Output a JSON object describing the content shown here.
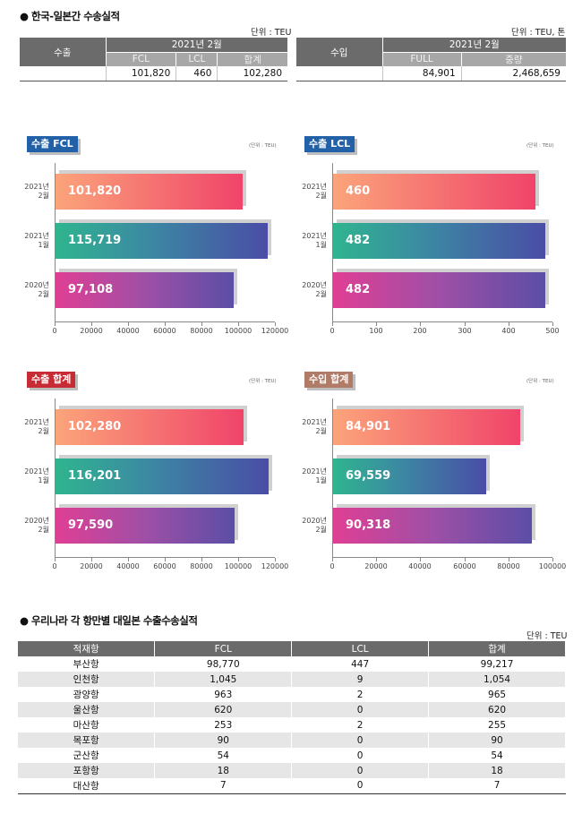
{
  "summary": {
    "title": "● 한국-일본간 수송실적",
    "export_unit": "단위 : TEU",
    "import_unit": "단위 : TEU, 톤",
    "export": {
      "label": "수출",
      "period": "2021년 2월",
      "cols": [
        "FCL",
        "LCL",
        "합계"
      ],
      "values": [
        "101,820",
        "460",
        "102,280"
      ]
    },
    "import": {
      "label": "수입",
      "period": "2021년 2월",
      "cols": [
        "FULL",
        "중량"
      ],
      "values": [
        "84,901",
        "2,468,659"
      ]
    }
  },
  "charts": [
    {
      "tag": "수출 FCL",
      "tag_color": "#2261a8",
      "unit": "(단위 : TEU)",
      "chart_data": {
        "type": "bar",
        "categories": [
          "2021년 2월",
          "2021년 1월",
          "2020년 2월"
        ],
        "values": [
          101820,
          115719,
          97108
        ],
        "labels": [
          "101,820",
          "115,719",
          "97,108"
        ],
        "xlim": [
          0,
          120000
        ],
        "ticks": [
          "0",
          "20000",
          "40000",
          "60000",
          "80000",
          "100000",
          "120000"
        ]
      }
    },
    {
      "tag": "수출 LCL",
      "tag_color": "#2261a8",
      "unit": "(단위 : TEU)",
      "chart_data": {
        "type": "bar",
        "categories": [
          "2021년 2월",
          "2021년 1월",
          "2020년 2월"
        ],
        "values": [
          460,
          482,
          482
        ],
        "labels": [
          "460",
          "482",
          "482"
        ],
        "xlim": [
          0,
          500
        ],
        "ticks": [
          "0",
          "100",
          "200",
          "300",
          "400",
          "500"
        ]
      }
    },
    {
      "tag": "수출 합계",
      "tag_color": "#c72b34",
      "unit": "(단위 : TEU)",
      "chart_data": {
        "type": "bar",
        "categories": [
          "2021년 2월",
          "2021년 1월",
          "2020년 2월"
        ],
        "values": [
          102280,
          116201,
          97590
        ],
        "labels": [
          "102,280",
          "116,201",
          "97,590"
        ],
        "xlim": [
          0,
          120000
        ],
        "ticks": [
          "0",
          "20000",
          "40000",
          "60000",
          "80000",
          "100000",
          "120000"
        ]
      }
    },
    {
      "tag": "수입 합계",
      "tag_color": "#b07b67",
      "unit": "(단위 : TEU)",
      "chart_data": {
        "type": "bar",
        "categories": [
          "2021년 2월",
          "2021년 1월",
          "2020년 2월"
        ],
        "values": [
          84901,
          69559,
          90318
        ],
        "labels": [
          "84,901",
          "69,559",
          "90,318"
        ],
        "xlim": [
          0,
          100000
        ],
        "ticks": [
          "0",
          "20000",
          "40000",
          "60000",
          "80000",
          "100000"
        ]
      }
    }
  ],
  "ports": {
    "title": "● 우리나라 각 항만별 대일본 수출수송실적",
    "unit": "단위 : TEU",
    "headers": [
      "적재항",
      "FCL",
      "LCL",
      "합계"
    ],
    "rows": [
      [
        "부산항",
        "98,770",
        "447",
        "99,217"
      ],
      [
        "인천항",
        "1,045",
        "9",
        "1,054"
      ],
      [
        "광양항",
        "963",
        "2",
        "965"
      ],
      [
        "울산항",
        "620",
        "0",
        "620"
      ],
      [
        "마산항",
        "253",
        "2",
        "255"
      ],
      [
        "목포항",
        "90",
        "0",
        "90"
      ],
      [
        "군산항",
        "54",
        "0",
        "54"
      ],
      [
        "포항항",
        "18",
        "0",
        "18"
      ],
      [
        "대산항",
        "7",
        "0",
        "7"
      ]
    ]
  }
}
